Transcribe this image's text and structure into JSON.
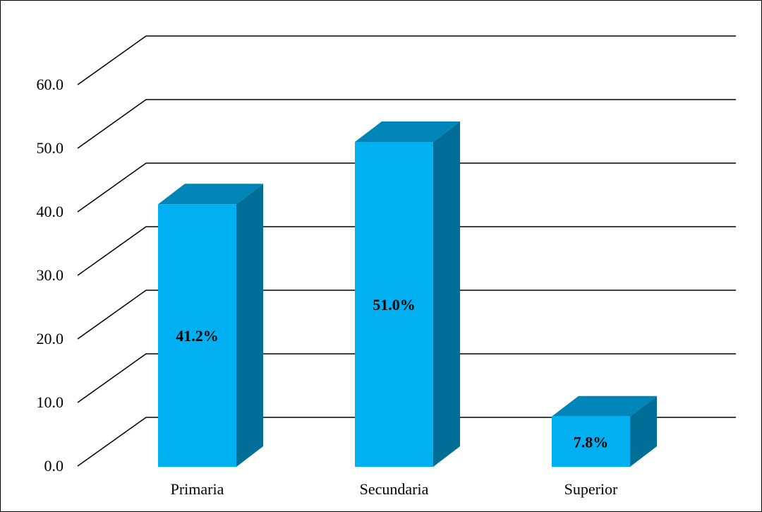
{
  "chart_data": {
    "type": "bar",
    "style": "3d-column",
    "categories": [
      "Primaria",
      "Secundaria",
      "Superior"
    ],
    "values": [
      41.2,
      51.0,
      7.8
    ],
    "data_labels": [
      "41.2%",
      "51.0%",
      "7.8%"
    ],
    "title": "",
    "xlabel": "",
    "ylabel": "",
    "ylim": [
      0,
      60
    ],
    "y_ticks": [
      "0.0",
      "10.0",
      "20.0",
      "30.0",
      "40.0",
      "50.0",
      "60.0"
    ],
    "grid": true,
    "legend": "none",
    "colors": {
      "bar_front": "#00B0F0",
      "bar_top": "#0085B8",
      "bar_side": "#006E97",
      "gridline": "#000000",
      "border": "#000000"
    }
  }
}
